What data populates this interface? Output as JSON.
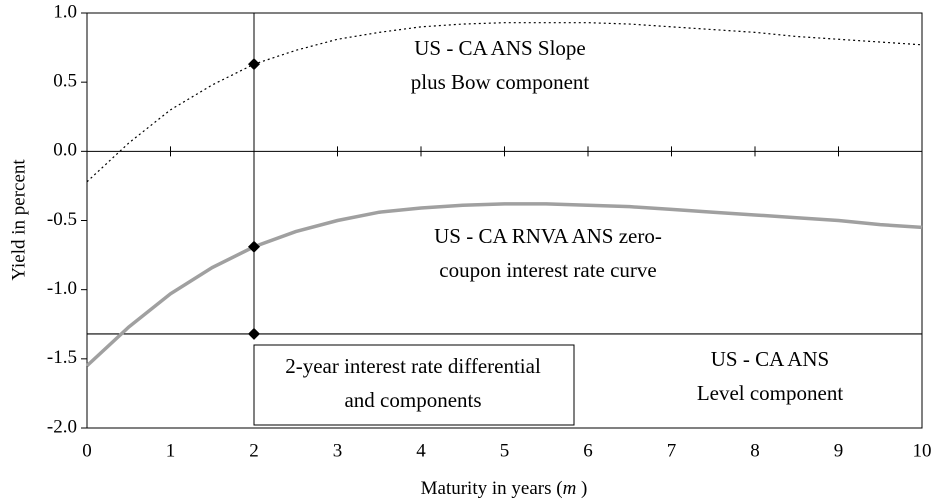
{
  "chart_data": {
    "type": "line",
    "x_label": [
      "Maturity in years (",
      "m",
      " )"
    ],
    "y_label": "Yield in percent",
    "x": [
      0,
      0.5,
      1,
      1.5,
      2,
      2.5,
      3,
      3.5,
      4,
      4.5,
      5,
      5.5,
      6,
      6.5,
      7,
      7.5,
      8,
      8.5,
      9,
      9.5,
      10
    ],
    "series": [
      {
        "name": "US - CA ANS Slope plus Bow component",
        "color": "#000000",
        "style": "dotted",
        "values": [
          -0.22,
          0.06,
          0.3,
          0.48,
          0.63,
          0.73,
          0.81,
          0.86,
          0.9,
          0.92,
          0.93,
          0.93,
          0.93,
          0.92,
          0.9,
          0.88,
          0.86,
          0.83,
          0.81,
          0.79,
          0.77
        ]
      },
      {
        "name": "US - CA RNVA ANS zero-coupon interest rate curve",
        "color": "#a0a0a0",
        "style": "thick",
        "values": [
          -1.55,
          -1.27,
          -1.03,
          -0.84,
          -0.69,
          -0.58,
          -0.5,
          -0.44,
          -0.41,
          -0.39,
          -0.38,
          -0.38,
          -0.39,
          -0.4,
          -0.42,
          -0.44,
          -0.46,
          -0.48,
          -0.5,
          -0.53,
          -0.55
        ]
      }
    ],
    "level": {
      "x": [
        0,
        10
      ],
      "values": [
        -1.32,
        -1.32
      ],
      "color": "#000000"
    },
    "points": {
      "x": [
        2,
        2,
        2
      ],
      "values": [
        0.63,
        -0.69,
        -1.32
      ],
      "color": "#000000"
    },
    "annotations": [
      [
        "US - CA ANS Slope",
        "plus Bow component"
      ],
      [
        "US - CA RNVA ANS zero-",
        "coupon interest rate curve"
      ],
      [
        "US - CA ANS",
        "Level component"
      ],
      [
        "2-year interest rate differential",
        "and components"
      ]
    ],
    "xlim": [
      0,
      10
    ],
    "xticks": [
      0,
      1,
      2,
      3,
      4,
      5,
      6,
      7,
      8,
      9,
      10
    ],
    "ylim": [
      -2,
      1
    ],
    "yticks": [
      {
        "value": -2,
        "label": "-2.0"
      },
      -1.5,
      {
        "value": -1,
        "label": "-1.0"
      },
      -0.5,
      {
        "value": 0,
        "label": "0.0"
      },
      0.5,
      {
        "value": 1,
        "label": "1.0"
      }
    ]
  }
}
